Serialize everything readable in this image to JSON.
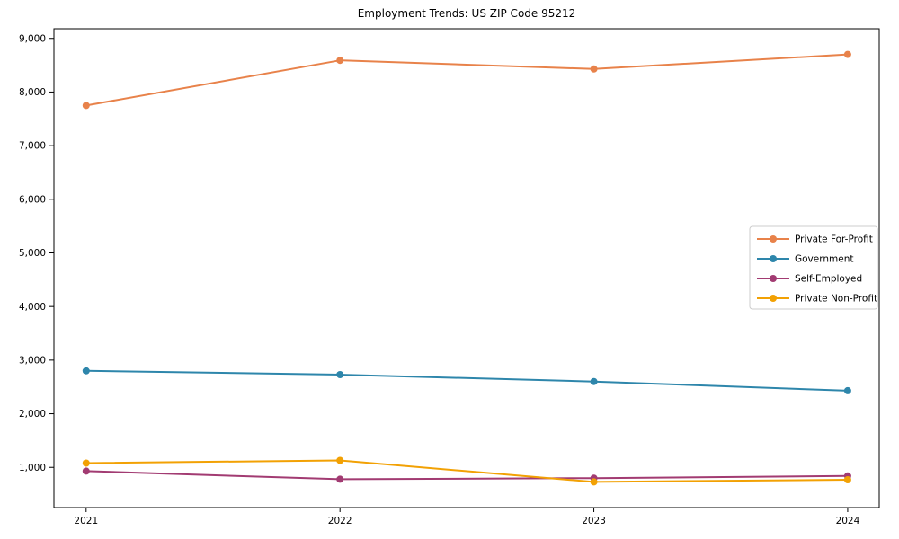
{
  "chart_data": {
    "type": "line",
    "title": "Employment Trends: US ZIP Code 95212",
    "xlabel": "",
    "ylabel": "",
    "categories": [
      "2021",
      "2022",
      "2023",
      "2024"
    ],
    "series": [
      {
        "name": "Private For-Profit",
        "color": "#E8824A",
        "values": [
          7750,
          8590,
          8430,
          8700
        ]
      },
      {
        "name": "Government",
        "color": "#2E86AB",
        "values": [
          2800,
          2730,
          2600,
          2430
        ]
      },
      {
        "name": "Self-Employed",
        "color": "#A23B72",
        "values": [
          930,
          780,
          800,
          840
        ]
      },
      {
        "name": "Private Non-Profit",
        "color": "#F2A104",
        "values": [
          1080,
          1130,
          730,
          770
        ]
      }
    ],
    "yticks": [
      1000,
      2000,
      3000,
      4000,
      5000,
      6000,
      7000,
      8000,
      9000
    ],
    "ytick_labels": [
      "1,000",
      "2,000",
      "3,000",
      "4,000",
      "5,000",
      "6,000",
      "7,000",
      "8,000",
      "9,000"
    ],
    "ylim": [
      250,
      9180
    ],
    "grid": false,
    "legend_position": "center-right",
    "marker": "circle",
    "line_width": 2,
    "axis_color": "#000000",
    "legend_border_color": "#cccccc",
    "background": "#ffffff"
  }
}
